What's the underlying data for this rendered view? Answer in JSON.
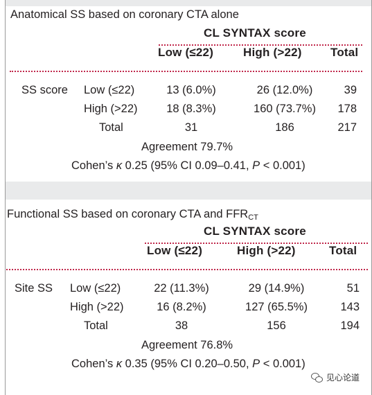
{
  "tables": [
    {
      "caption": "Anatomical SS based on coronary CTA alone",
      "caption_sub": "",
      "group_header": "CL SYNTAX score",
      "columns": [
        "Low (≤22)",
        "High (>22)",
        "Total"
      ],
      "row_group": "SS score",
      "rows": [
        {
          "label": "Low (≤22)",
          "low": "13 (6.0%)",
          "high": "26 (12.0%)",
          "total": "39"
        },
        {
          "label": "High (>22)",
          "low": "18 (8.3%)",
          "high": "160 (73.7%)",
          "total": "178"
        },
        {
          "label": "Total",
          "low": "31",
          "high": "186",
          "total": "217"
        }
      ],
      "agreement": "Agreement 79.7%",
      "kappa_prefix": "Cohen’s ",
      "kappa_symbol": "κ",
      "kappa_mid": " 0.25 (95% CI 0.09–0.41, ",
      "kappa_p": "P",
      "kappa_suffix": " < 0.001)"
    },
    {
      "caption": "Functional SS based on coronary CTA and FFR",
      "caption_sub": "CT",
      "group_header": "CL SYNTAX score",
      "columns": [
        "Low (≤22)",
        "High (>22)",
        "Total"
      ],
      "row_group": "Site SS",
      "rows": [
        {
          "label": "Low (≤22)",
          "low": "22 (11.3%)",
          "high": "29 (14.9%)",
          "total": "51"
        },
        {
          "label": "High (>22)",
          "low": "16 (8.2%)",
          "high": "127 (65.5%)",
          "total": "143"
        },
        {
          "label": "Total",
          "low": "38",
          "high": "156",
          "total": "194"
        }
      ],
      "agreement": "Agreement 76.8%",
      "kappa_prefix": "Cohen’s ",
      "kappa_symbol": "κ",
      "kappa_mid": " 0.35 (95% CI 0.20–0.50, ",
      "kappa_p": "P",
      "kappa_suffix": " < 0.001)"
    }
  ],
  "watermark": {
    "text": "见心论道",
    "icon": "wechat-icon"
  }
}
